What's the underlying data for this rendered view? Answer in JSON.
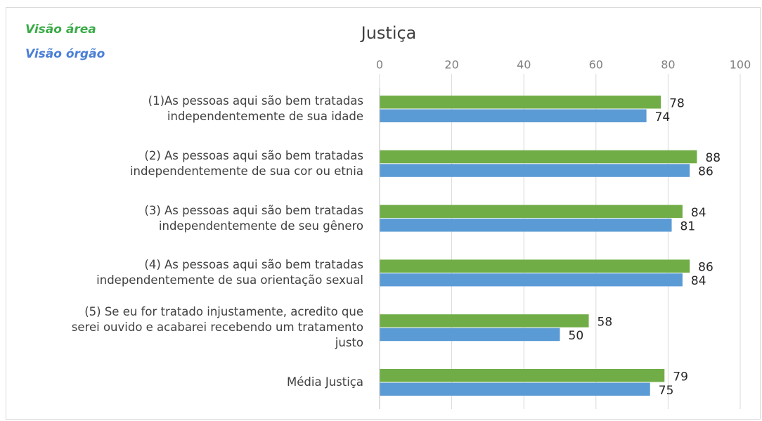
{
  "chart_data": {
    "type": "hbar",
    "title": "Justiça",
    "categories": [
      "(1)As pessoas aqui são bem tratadas\nindependentemente de sua idade",
      "(2) As pessoas aqui são bem tratadas\nindependentemente de sua cor ou etnia",
      "(3) As pessoas aqui são bem tratadas\nindependentemente de seu gênero",
      "(4) As pessoas aqui são bem tratadas\nindependentemente de sua orientação sexual",
      "(5) Se eu for tratado injustamente, acredito que\nserei ouvido e acabarei recebendo um tratamento\njusto",
      "Média Justiça"
    ],
    "series": [
      {
        "name": "Visão área",
        "color": "#70ad47",
        "values": [
          78,
          88,
          84,
          86,
          58,
          79
        ]
      },
      {
        "name": "Visão órgão",
        "color": "#5b9bd5",
        "values": [
          74,
          86,
          81,
          84,
          50,
          75
        ]
      }
    ],
    "xlim": [
      0,
      100
    ],
    "xticks": [
      0,
      20,
      40,
      60,
      80,
      100
    ],
    "grid": true,
    "legend": "top-left"
  }
}
